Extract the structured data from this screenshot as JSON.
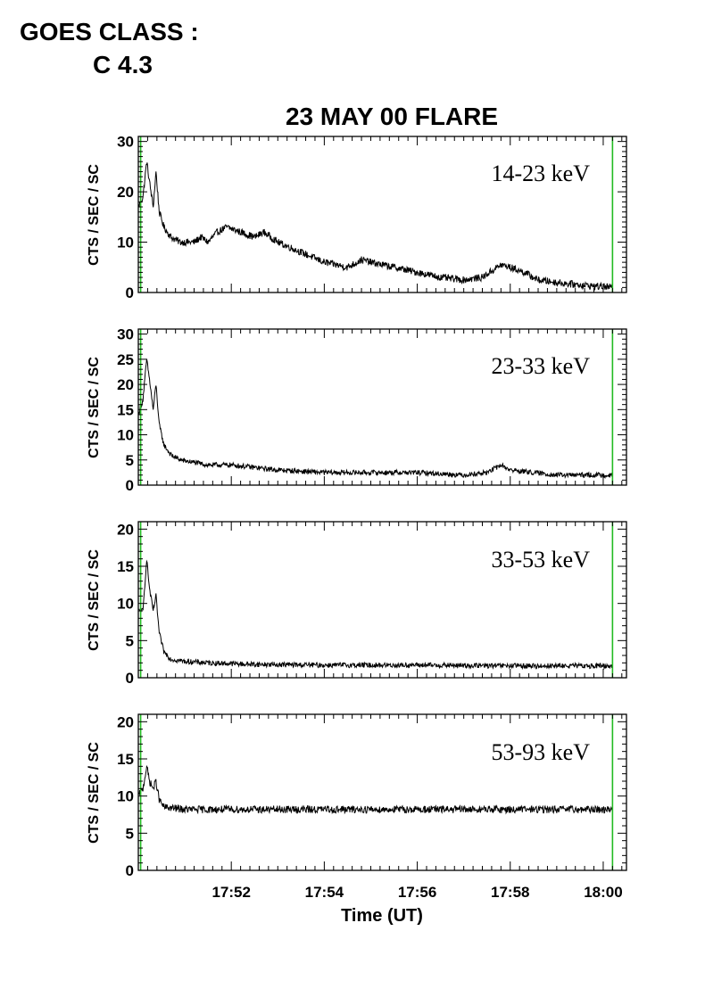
{
  "header": {
    "goes_label": "GOES CLASS :",
    "goes_value": "C 4.3"
  },
  "chart_data": {
    "type": "line",
    "title": "23 MAY 00 FLARE",
    "xlabel": "Time (UT)",
    "x_unit": "minutes after 17:50 UT",
    "xlim": [
      0,
      10.5
    ],
    "x_ticks": [
      {
        "value": 2,
        "label": "17:52"
      },
      {
        "value": 4,
        "label": "17:54"
      },
      {
        "value": 6,
        "label": "17:56"
      },
      {
        "value": 8,
        "label": "17:58"
      },
      {
        "value": 10,
        "label": "18:00"
      }
    ],
    "marker_lines": [
      0.05,
      10.2
    ],
    "colors": {
      "trace": "#000000",
      "marker": "#22bb22",
      "axis": "#000000"
    },
    "panels": [
      {
        "name": "14-23 keV",
        "ylabel": "CTS / SEC / SC",
        "ylim": [
          0,
          31
        ],
        "y_ticks": [
          0,
          10,
          20,
          30
        ],
        "noise": 0.7,
        "envelope": [
          [
            0,
            17
          ],
          [
            0.1,
            19
          ],
          [
            0.18,
            26
          ],
          [
            0.24,
            22
          ],
          [
            0.32,
            17
          ],
          [
            0.38,
            24
          ],
          [
            0.45,
            16
          ],
          [
            0.55,
            13
          ],
          [
            0.7,
            11
          ],
          [
            0.9,
            10
          ],
          [
            1.2,
            10
          ],
          [
            1.35,
            11
          ],
          [
            1.5,
            10
          ],
          [
            1.7,
            12
          ],
          [
            1.9,
            13
          ],
          [
            2.2,
            12
          ],
          [
            2.5,
            11
          ],
          [
            2.7,
            12
          ],
          [
            3.0,
            10
          ],
          [
            3.5,
            8
          ],
          [
            4.0,
            6
          ],
          [
            4.5,
            5
          ],
          [
            4.8,
            6.5
          ],
          [
            5.0,
            6
          ],
          [
            5.5,
            5
          ],
          [
            6.0,
            4
          ],
          [
            6.5,
            3
          ],
          [
            7.0,
            2.5
          ],
          [
            7.4,
            3
          ],
          [
            7.8,
            5.5
          ],
          [
            8.0,
            5
          ],
          [
            8.3,
            4
          ],
          [
            8.6,
            2.5
          ],
          [
            9.0,
            2
          ],
          [
            9.5,
            1.5
          ],
          [
            10.2,
            1
          ]
        ]
      },
      {
        "name": "23-33 keV",
        "ylabel": "CTS / SEC / SC",
        "ylim": [
          0,
          31
        ],
        "y_ticks": [
          0,
          5,
          10,
          15,
          20,
          25,
          30
        ],
        "noise": 0.5,
        "envelope": [
          [
            0,
            14
          ],
          [
            0.1,
            17
          ],
          [
            0.18,
            25
          ],
          [
            0.24,
            21
          ],
          [
            0.32,
            15
          ],
          [
            0.38,
            20
          ],
          [
            0.45,
            12
          ],
          [
            0.55,
            8
          ],
          [
            0.7,
            6
          ],
          [
            0.9,
            5
          ],
          [
            1.2,
            4.5
          ],
          [
            1.5,
            4
          ],
          [
            2.0,
            4
          ],
          [
            2.5,
            3.5
          ],
          [
            3.0,
            3
          ],
          [
            4.0,
            2.5
          ],
          [
            5.0,
            2.5
          ],
          [
            6.0,
            2.5
          ],
          [
            7.0,
            2
          ],
          [
            7.5,
            2.5
          ],
          [
            7.8,
            4
          ],
          [
            8.0,
            3
          ],
          [
            8.5,
            2.5
          ],
          [
            9.0,
            2
          ],
          [
            10.2,
            2
          ]
        ]
      },
      {
        "name": "33-53 keV",
        "ylabel": "CTS / SEC / SC",
        "ylim": [
          0,
          21
        ],
        "y_ticks": [
          0,
          5,
          10,
          15,
          20
        ],
        "noise": 0.35,
        "envelope": [
          [
            0,
            9
          ],
          [
            0.1,
            9
          ],
          [
            0.18,
            16
          ],
          [
            0.24,
            12
          ],
          [
            0.32,
            9
          ],
          [
            0.38,
            11
          ],
          [
            0.45,
            6
          ],
          [
            0.55,
            3.5
          ],
          [
            0.7,
            2.5
          ],
          [
            1.0,
            2.2
          ],
          [
            1.5,
            2
          ],
          [
            2.5,
            1.8
          ],
          [
            4.0,
            1.7
          ],
          [
            6.0,
            1.7
          ],
          [
            8.0,
            1.6
          ],
          [
            10.2,
            1.6
          ]
        ]
      },
      {
        "name": "53-93 keV",
        "ylabel": "CTS / SEC / SC",
        "ylim": [
          0,
          21
        ],
        "y_ticks": [
          0,
          5,
          10,
          15,
          20
        ],
        "noise": 0.5,
        "envelope": [
          [
            0,
            10
          ],
          [
            0.1,
            11
          ],
          [
            0.18,
            14
          ],
          [
            0.24,
            12
          ],
          [
            0.32,
            11
          ],
          [
            0.38,
            12
          ],
          [
            0.45,
            9.5
          ],
          [
            0.55,
            8.5
          ],
          [
            1.0,
            8.2
          ],
          [
            3.0,
            8.2
          ],
          [
            6.0,
            8.2
          ],
          [
            8.0,
            8.2
          ],
          [
            10.2,
            8.2
          ]
        ]
      }
    ]
  }
}
